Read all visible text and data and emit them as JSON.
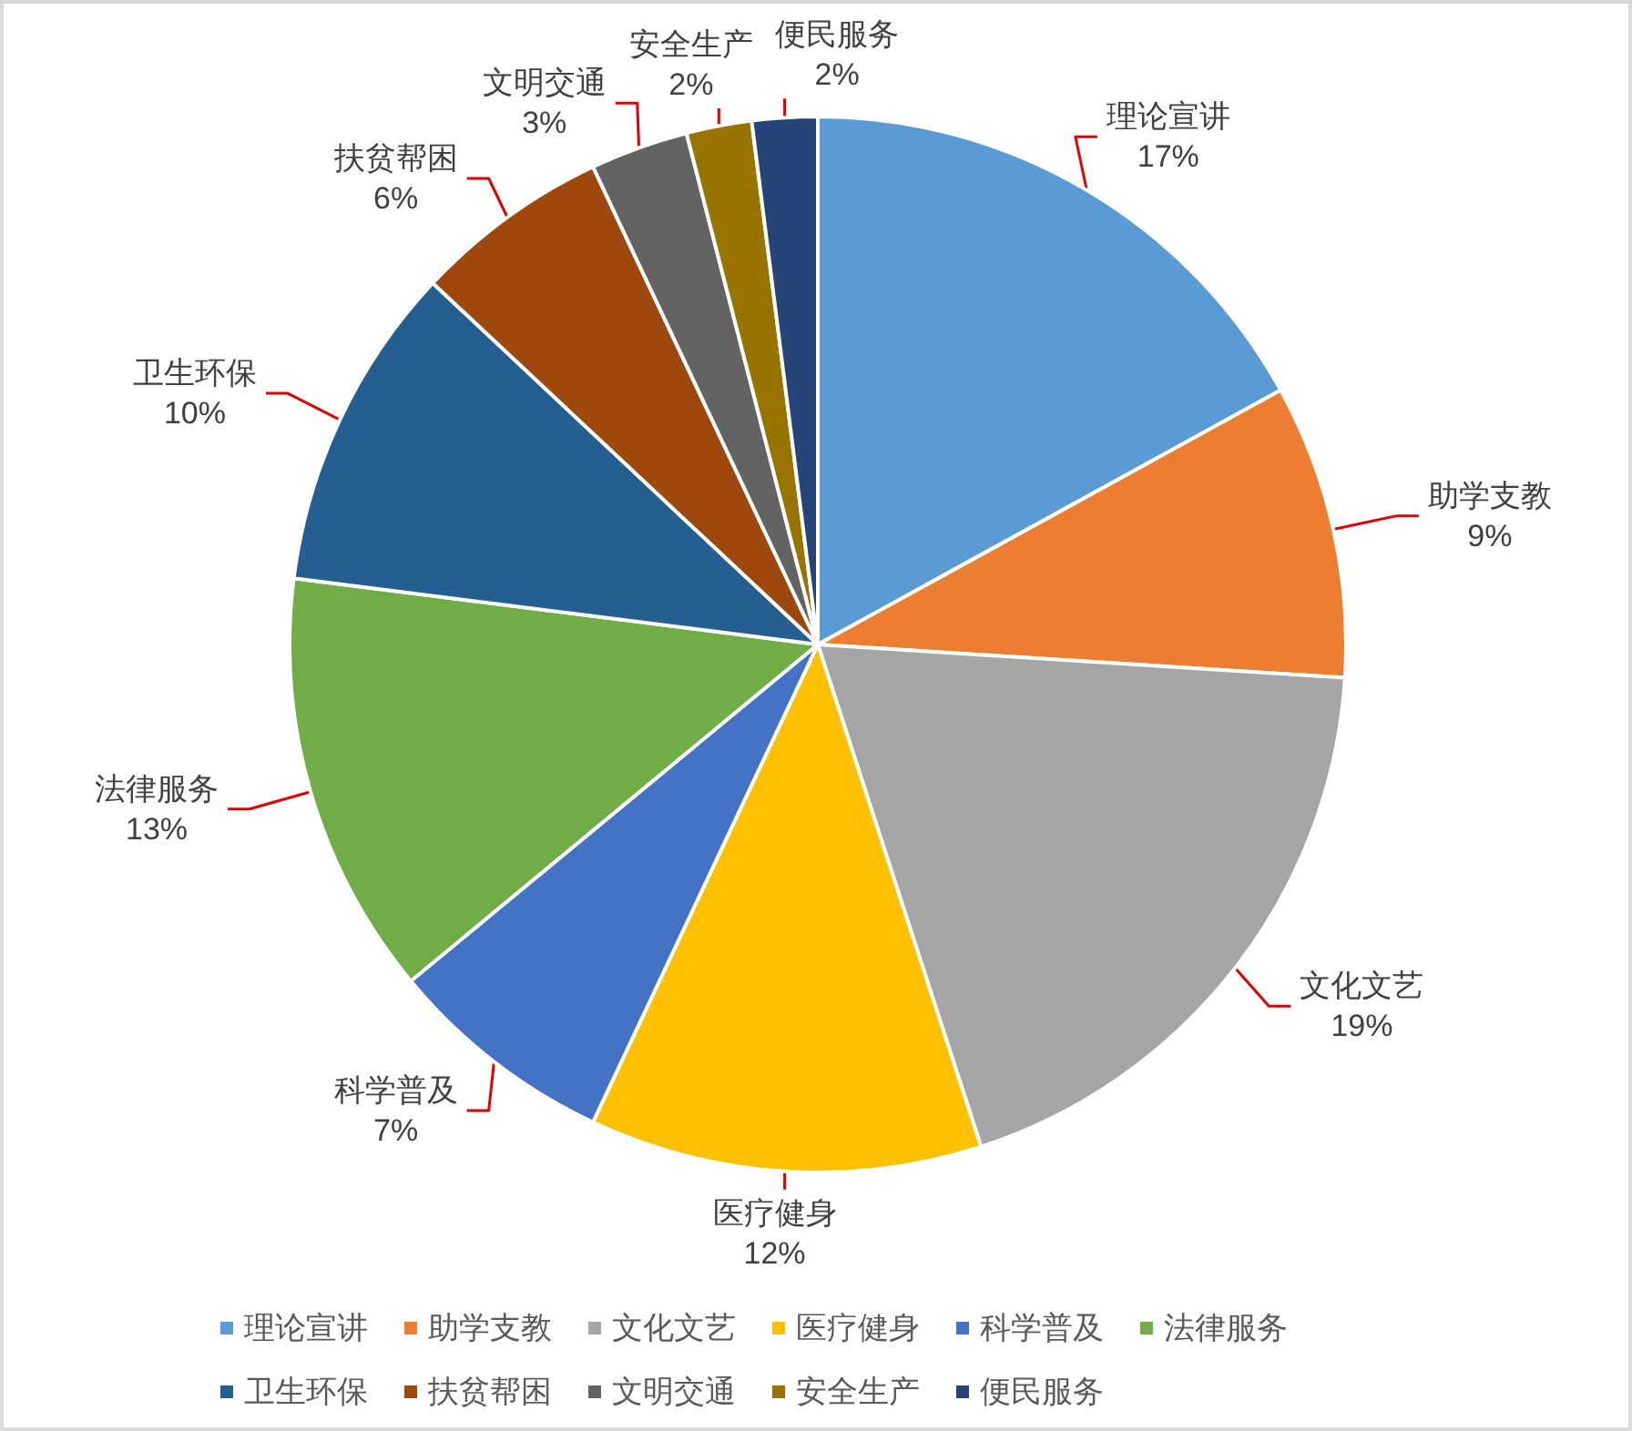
{
  "chart_data": {
    "type": "pie",
    "categories": [
      "理论宣讲",
      "助学支教",
      "文化文艺",
      "医疗健身",
      "科学普及",
      "法律服务",
      "卫生环保",
      "扶贫帮困",
      "文明交通",
      "安全生产",
      "便民服务"
    ],
    "values": [
      17,
      9,
      19,
      12,
      7,
      13,
      10,
      6,
      3,
      2,
      2
    ],
    "value_labels": [
      "17%",
      "9%",
      "19%",
      "12%",
      "7%",
      "13%",
      "10%",
      "6%",
      "3%",
      "2%",
      "2%"
    ],
    "colors": [
      "#5b9bd5",
      "#ed7d31",
      "#a5a5a5",
      "#ffc000",
      "#4472c4",
      "#70ad47",
      "#255e91",
      "#9e480e",
      "#636363",
      "#997300",
      "#264478"
    ],
    "legend": "bottom"
  }
}
